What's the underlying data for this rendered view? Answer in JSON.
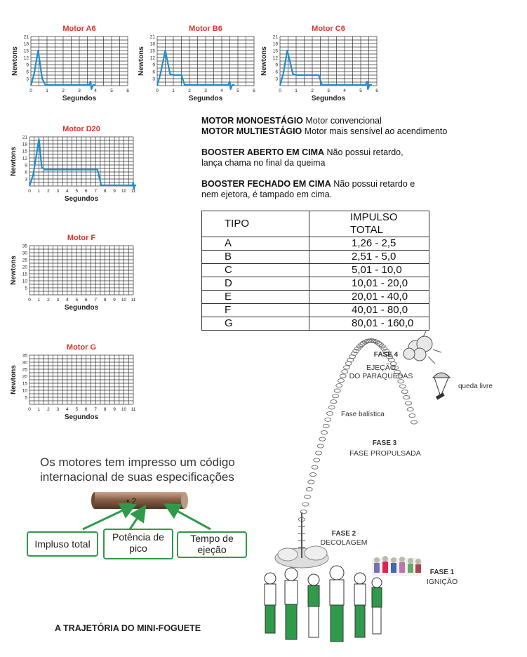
{
  "charts": [
    {
      "id": "a6",
      "title": "Motor A6",
      "ylabel": "Newtons",
      "xlabel": "Segundos",
      "yticks": [
        3,
        6,
        9,
        12,
        15,
        18,
        21
      ],
      "xticks": [
        0,
        1,
        2,
        3,
        4,
        5,
        6
      ],
      "curve": [
        [
          0,
          0
        ],
        [
          0.2,
          5
        ],
        [
          0.45,
          15
        ],
        [
          0.7,
          3
        ],
        [
          0.9,
          0.3
        ],
        [
          3.6,
          0.3
        ],
        [
          3.7,
          1.8
        ],
        [
          3.75,
          -1.5
        ],
        [
          3.85,
          0.3
        ],
        [
          4,
          0.3
        ]
      ]
    },
    {
      "id": "b6",
      "title": "Motor B6",
      "ylabel": "Newtons",
      "xlabel": "Segundos",
      "yticks": [
        3,
        6,
        9,
        12,
        15,
        18,
        21
      ],
      "xticks": [
        0,
        1,
        2,
        3,
        4,
        5,
        6
      ],
      "curve": [
        [
          0,
          0
        ],
        [
          0.2,
          5
        ],
        [
          0.5,
          15
        ],
        [
          0.8,
          5
        ],
        [
          1,
          4.5
        ],
        [
          1.5,
          4.5
        ],
        [
          1.7,
          0.3
        ],
        [
          4.4,
          0.3
        ],
        [
          4.5,
          1.8
        ],
        [
          4.55,
          -1.5
        ],
        [
          4.65,
          0.3
        ],
        [
          4.8,
          0.3
        ]
      ]
    },
    {
      "id": "c6",
      "title": "Motor C6",
      "ylabel": "Newtons",
      "xlabel": "Segundos",
      "yticks": [
        3,
        6,
        9,
        12,
        15,
        18,
        21
      ],
      "xticks": [
        0,
        1,
        2,
        3,
        4,
        5,
        6
      ],
      "curve": [
        [
          0,
          0
        ],
        [
          0.2,
          5
        ],
        [
          0.45,
          15
        ],
        [
          0.8,
          5
        ],
        [
          1,
          4.5
        ],
        [
          2.4,
          4.5
        ],
        [
          2.6,
          0.3
        ],
        [
          5.3,
          0.3
        ],
        [
          5.4,
          1.8
        ],
        [
          5.45,
          -1.5
        ],
        [
          5.55,
          0.3
        ],
        [
          5.7,
          0.3
        ]
      ]
    },
    {
      "id": "d20",
      "title": "Motor D20",
      "ylabel": "Newtons",
      "xlabel": "Segundos",
      "yticks": [
        3,
        6,
        9,
        12,
        15,
        18,
        21
      ],
      "xticks": [
        0,
        1,
        2,
        3,
        4,
        5,
        6,
        7,
        8,
        9,
        10,
        11
      ],
      "curve": [
        [
          0,
          0
        ],
        [
          0.4,
          5
        ],
        [
          1,
          20
        ],
        [
          1.3,
          8
        ],
        [
          1.6,
          7
        ],
        [
          7.2,
          7
        ],
        [
          7.6,
          0.3
        ],
        [
          10.9,
          0.3
        ],
        [
          11,
          1.5
        ],
        [
          11.05,
          -1.2
        ],
        [
          11.15,
          0.3
        ],
        [
          11.3,
          0.3
        ]
      ]
    },
    {
      "id": "f",
      "title": "Motor F",
      "ylabel": "Newtons",
      "xlabel": "Segundos",
      "yticks": [
        5,
        10,
        15,
        20,
        25,
        30,
        35
      ],
      "xticks": [
        0,
        1,
        2,
        3,
        4,
        5,
        6,
        7,
        8,
        9,
        10,
        11
      ],
      "curve": []
    },
    {
      "id": "g",
      "title": "Motor G",
      "ylabel": "Newtons",
      "xlabel": "Segundos",
      "yticks": [
        5,
        10,
        15,
        20,
        25,
        30,
        35
      ],
      "xticks": [
        0,
        1,
        2,
        3,
        4,
        5,
        6,
        7,
        8,
        9,
        10,
        11
      ],
      "curve": []
    }
  ],
  "info": {
    "mono_label": "MOTOR MONOESTÁGIO",
    "mono_text": " Motor convencional",
    "multi_label": "MOTOR MULTIESTÁGIO",
    "multi_text": " Motor mais sensível ao acendimento",
    "booster_open_label": "BOOSTER ABERTO EM CIMA",
    "booster_open_text1": " Não possui retardo,",
    "booster_open_text2": "lança chama no final da queima",
    "booster_closed_label": "BOOSTER FECHADO EM CIMA",
    "booster_closed_text1": " Não possui retardo e",
    "booster_closed_text2": "nem ejetora, é tampado em cima."
  },
  "table": {
    "headers": [
      "TIPO",
      "IMPULSO TOTAL"
    ],
    "rows": [
      [
        "A",
        "1,26 - 2,5"
      ],
      [
        "B",
        "2,51 - 5,0"
      ],
      [
        "C",
        "5,01 - 10,0"
      ],
      [
        "D",
        "10,01 - 20,0"
      ],
      [
        "E",
        "20,01 - 40,0"
      ],
      [
        "F",
        "40,01 - 80,0"
      ],
      [
        "G",
        "80,01 - 160,0"
      ]
    ]
  },
  "motor_code": {
    "heading_line1": "Os motores tem impresso um código",
    "heading_line2": "internacional de suas especificações",
    "box1": "Impluso total",
    "box2_line1": "Potência de",
    "box2_line2": "pico",
    "box3_line1": "Tempo de",
    "box3_line2": "ejeção",
    "accent_color": "#2f9a4a"
  },
  "trajectory": {
    "fase4_title": "FASE 4",
    "fase4_line1": "EJEÇÃO",
    "fase4_line2": "DO PARAQUEDAS",
    "queda": "queda livre",
    "balistica": "Fase balística",
    "fase3_title": "FASE 3",
    "fase3_line1": "FASE PROPULSADA",
    "fase2_title": "FASE 2",
    "fase2_line1": "DECOLAGEM",
    "fase1_title": "FASE 1",
    "fase1_line1": "IGNIÇÃO",
    "caption": "A TRAJETÓRIA DO MINI-FOGUETE"
  }
}
